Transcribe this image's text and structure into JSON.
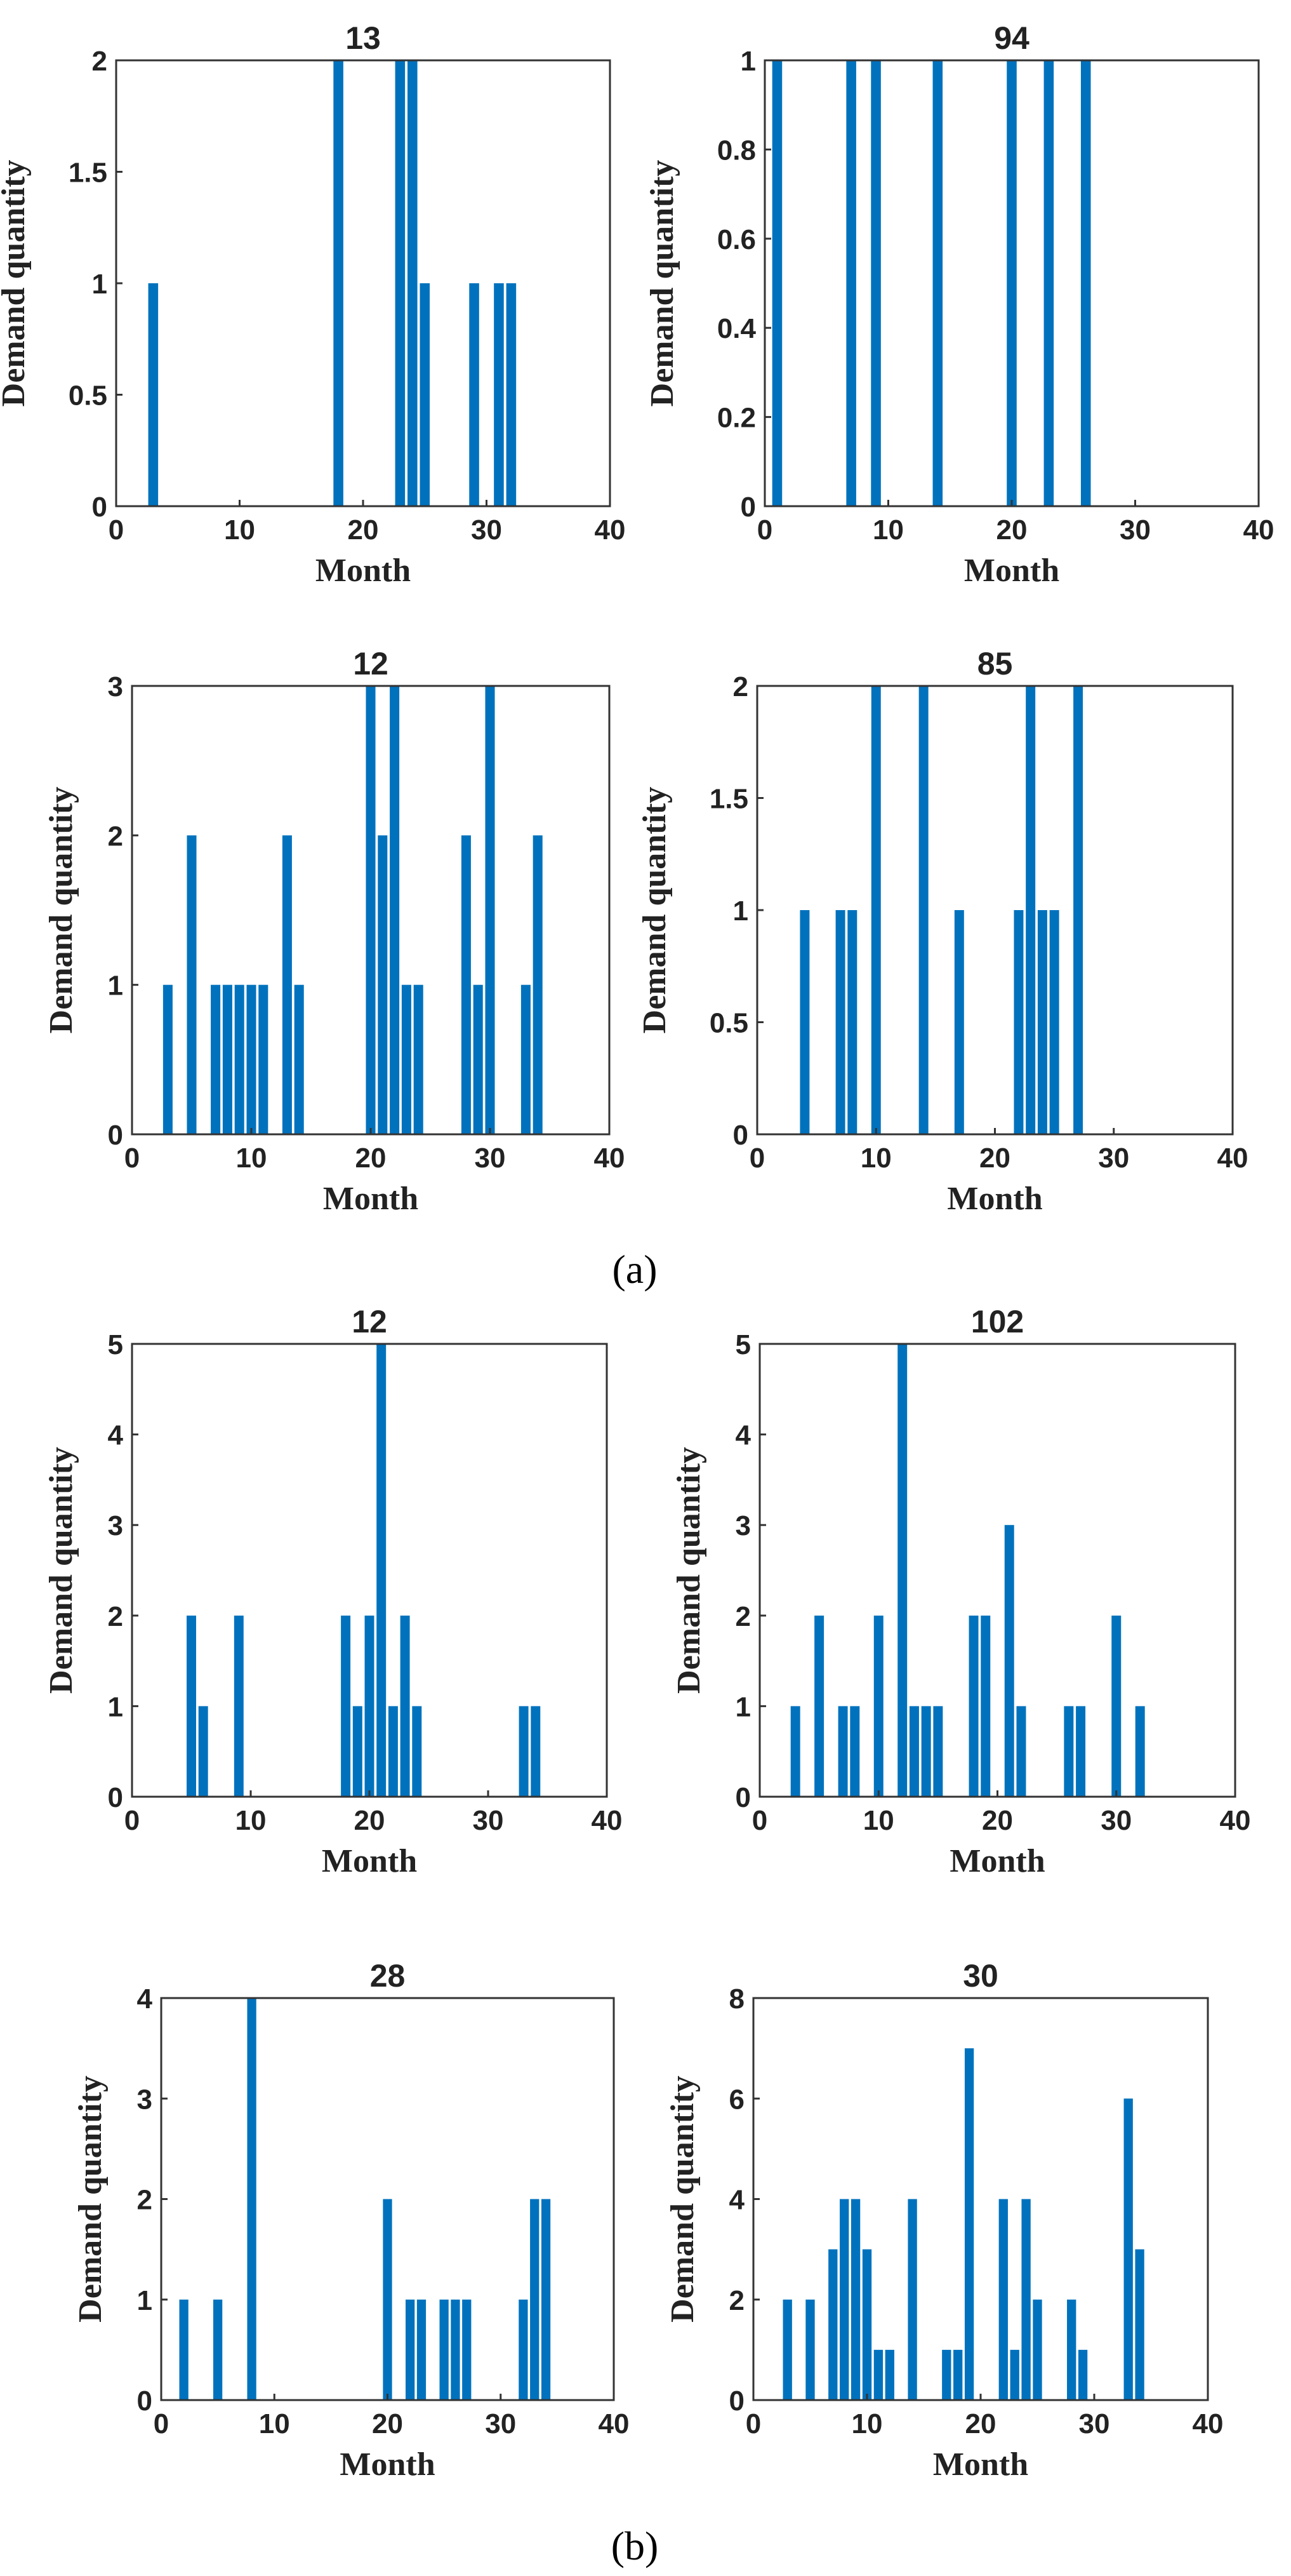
{
  "figure": {
    "panel_labels": [
      "(a)",
      "(b)"
    ]
  },
  "chart_data": [
    {
      "type": "bar",
      "panel": "(a)",
      "title": "13",
      "xlabel": "Month",
      "ylabel": "Demand quantity",
      "xlim": [
        0,
        40
      ],
      "ylim": [
        0,
        2
      ],
      "xticks": [
        0,
        10,
        20,
        30,
        40
      ],
      "xtick_labels": [
        "0",
        "10",
        "20",
        "30",
        "40"
      ],
      "yticks": [
        0,
        0.5,
        1,
        1.5,
        2
      ],
      "ytick_labels": [
        "0",
        "0.5",
        "1",
        "1.5",
        "2"
      ],
      "color": "#0072BD",
      "x": [
        3,
        18,
        23,
        24,
        25,
        29,
        31,
        32
      ],
      "values": [
        1,
        2,
        2,
        2,
        1,
        1,
        1,
        1
      ]
    },
    {
      "type": "bar",
      "panel": "(a)",
      "title": "94",
      "xlabel": "Month",
      "ylabel": "Demand quantity",
      "xlim": [
        0,
        40
      ],
      "ylim": [
        0,
        1
      ],
      "xticks": [
        0,
        10,
        20,
        30,
        40
      ],
      "xtick_labels": [
        "0",
        "10",
        "20",
        "30",
        "40"
      ],
      "yticks": [
        0,
        0.2,
        0.4,
        0.6,
        0.8,
        1
      ],
      "ytick_labels": [
        "0",
        "0.2",
        "0.4",
        "0.6",
        "0.8",
        "1"
      ],
      "color": "#0072BD",
      "x": [
        1,
        7,
        9,
        14,
        20,
        23,
        26
      ],
      "values": [
        1,
        1,
        1,
        1,
        1,
        1,
        1
      ]
    },
    {
      "type": "bar",
      "panel": "(a)",
      "title": "12",
      "xlabel": "Month",
      "ylabel": "Demand quantity",
      "xlim": [
        0,
        40
      ],
      "ylim": [
        0,
        3
      ],
      "xticks": [
        0,
        10,
        20,
        30,
        40
      ],
      "xtick_labels": [
        "0",
        "10",
        "20",
        "30",
        "40"
      ],
      "yticks": [
        0,
        1,
        2,
        3
      ],
      "ytick_labels": [
        "0",
        "1",
        "2",
        "3"
      ],
      "color": "#0072BD",
      "x": [
        3,
        5,
        7,
        8,
        9,
        10,
        11,
        13,
        14,
        20,
        21,
        22,
        23,
        24,
        28,
        29,
        30,
        33,
        34
      ],
      "values": [
        1,
        2,
        1,
        1,
        1,
        1,
        1,
        2,
        1,
        3,
        2,
        3,
        1,
        1,
        2,
        1,
        3,
        1,
        2
      ]
    },
    {
      "type": "bar",
      "panel": "(a)",
      "title": "85",
      "xlabel": "Month",
      "ylabel": "Demand quantity",
      "xlim": [
        0,
        40
      ],
      "ylim": [
        0,
        2
      ],
      "xticks": [
        0,
        10,
        20,
        30,
        40
      ],
      "xtick_labels": [
        "0",
        "10",
        "20",
        "30",
        "40"
      ],
      "yticks": [
        0,
        0.5,
        1,
        1.5,
        2
      ],
      "ytick_labels": [
        "0",
        "0.5",
        "1",
        "1.5",
        "2"
      ],
      "color": "#0072BD",
      "x": [
        4,
        7,
        8,
        10,
        14,
        17,
        22,
        23,
        24,
        25,
        27
      ],
      "values": [
        1,
        1,
        1,
        2,
        2,
        1,
        1,
        2,
        1,
        1,
        2
      ]
    },
    {
      "type": "bar",
      "panel": "(b)",
      "title": "12",
      "xlabel": "Month",
      "ylabel": "Demand quantity",
      "xlim": [
        0,
        40
      ],
      "ylim": [
        0,
        5
      ],
      "xticks": [
        0,
        10,
        20,
        30,
        40
      ],
      "xtick_labels": [
        "0",
        "10",
        "20",
        "30",
        "40"
      ],
      "yticks": [
        0,
        1,
        2,
        3,
        4,
        5
      ],
      "ytick_labels": [
        "0",
        "1",
        "2",
        "3",
        "4",
        "5"
      ],
      "color": "#0072BD",
      "x": [
        5,
        6,
        9,
        18,
        19,
        20,
        21,
        22,
        23,
        24,
        33,
        34
      ],
      "values": [
        2,
        1,
        2,
        2,
        1,
        2,
        5,
        1,
        2,
        1,
        1,
        1
      ]
    },
    {
      "type": "bar",
      "panel": "(b)",
      "title": "102",
      "xlabel": "Month",
      "ylabel": "Demand quantity",
      "xlim": [
        0,
        40
      ],
      "ylim": [
        0,
        5
      ],
      "xticks": [
        0,
        10,
        20,
        30,
        40
      ],
      "xtick_labels": [
        "0",
        "10",
        "20",
        "30",
        "40"
      ],
      "yticks": [
        0,
        1,
        2,
        3,
        4,
        5
      ],
      "ytick_labels": [
        "0",
        "1",
        "2",
        "3",
        "4",
        "5"
      ],
      "color": "#0072BD",
      "x": [
        3,
        5,
        7,
        8,
        10,
        12,
        13,
        14,
        15,
        18,
        19,
        21,
        22,
        26,
        27,
        30,
        32
      ],
      "values": [
        1,
        2,
        1,
        1,
        2,
        5,
        1,
        1,
        1,
        2,
        2,
        3,
        1,
        1,
        1,
        2,
        1
      ]
    },
    {
      "type": "bar",
      "panel": "(b)",
      "title": "28",
      "xlabel": "Month",
      "ylabel": "Demand quantity",
      "xlim": [
        0,
        40
      ],
      "ylim": [
        0,
        4
      ],
      "xticks": [
        0,
        10,
        20,
        30,
        40
      ],
      "xtick_labels": [
        "0",
        "10",
        "20",
        "30",
        "40"
      ],
      "yticks": [
        0,
        1,
        2,
        3,
        4
      ],
      "ytick_labels": [
        "0",
        "1",
        "2",
        "3",
        "4"
      ],
      "color": "#0072BD",
      "x": [
        2,
        5,
        8,
        20,
        22,
        23,
        25,
        26,
        27,
        32,
        33,
        34
      ],
      "values": [
        1,
        1,
        4,
        2,
        1,
        1,
        1,
        1,
        1,
        1,
        2,
        2
      ]
    },
    {
      "type": "bar",
      "panel": "(b)",
      "title": "30",
      "xlabel": "Month",
      "ylabel": "Demand quantity",
      "xlim": [
        0,
        40
      ],
      "ylim": [
        0,
        8
      ],
      "xticks": [
        0,
        10,
        20,
        30,
        40
      ],
      "xtick_labels": [
        "0",
        "10",
        "20",
        "30",
        "40"
      ],
      "yticks": [
        0,
        2,
        4,
        6,
        8
      ],
      "ytick_labels": [
        "0",
        "2",
        "4",
        "6",
        "8"
      ],
      "color": "#0072BD",
      "x": [
        3,
        5,
        7,
        8,
        9,
        10,
        11,
        12,
        14,
        17,
        18,
        19,
        22,
        23,
        24,
        25,
        28,
        29,
        33,
        34
      ],
      "values": [
        2,
        2,
        3,
        4,
        4,
        3,
        1,
        1,
        4,
        1,
        1,
        7,
        4,
        1,
        4,
        2,
        2,
        1,
        6,
        3
      ]
    }
  ]
}
